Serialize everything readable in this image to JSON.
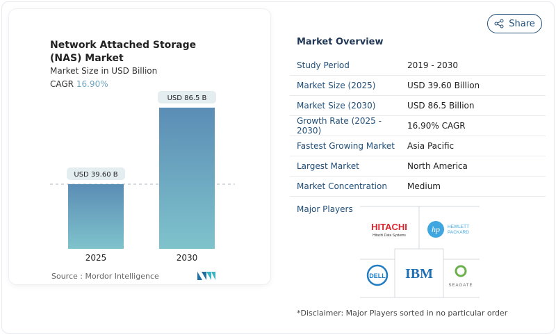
{
  "header": {
    "share_label": "Share"
  },
  "card": {
    "title": "Network Attached Storage (NAS) Market",
    "subtitle": "Market Size in USD Billion",
    "cagr_label": "CAGR",
    "cagr_value": "16.90%",
    "source": "Source :  Mordor Intelligence"
  },
  "chart_data": {
    "type": "bar",
    "categories": [
      "2025",
      "2030"
    ],
    "values": [
      39.6,
      86.5
    ],
    "data_labels": [
      "USD 39.60 B",
      "USD 86.5 B"
    ],
    "title": "Network Attached Storage (NAS) Market",
    "ylabel": "Market Size in USD Billion",
    "ylim": [
      0,
      90
    ],
    "grid": false,
    "colors": [
      "#5b8db5",
      "#7fc3cc"
    ]
  },
  "overview": {
    "title": "Market Overview",
    "rows": [
      {
        "key": "Study Period",
        "value": "2019 - 2030"
      },
      {
        "key": "Market Size (2025)",
        "value": "USD 39.60 Billion"
      },
      {
        "key": "Market Size (2030)",
        "value": "USD 86.5 Billion"
      },
      {
        "key": "Growth Rate (2025 - 2030)",
        "value": "16.90% CAGR"
      },
      {
        "key": "Fastest Growing Market",
        "value": "Asia Pacific"
      },
      {
        "key": "Largest Market",
        "value": "North America"
      },
      {
        "key": "Market Concentration",
        "value": "Medium"
      }
    ]
  },
  "players": {
    "label": "Major Players",
    "names": [
      "HITACHI",
      "Hitachi Data Systems",
      "HEWLETT",
      "PACKARD",
      "DELL",
      "IBM",
      "SEAGATE"
    ]
  },
  "disclaimer": "*Disclaimer: Major Players sorted in no particular order"
}
